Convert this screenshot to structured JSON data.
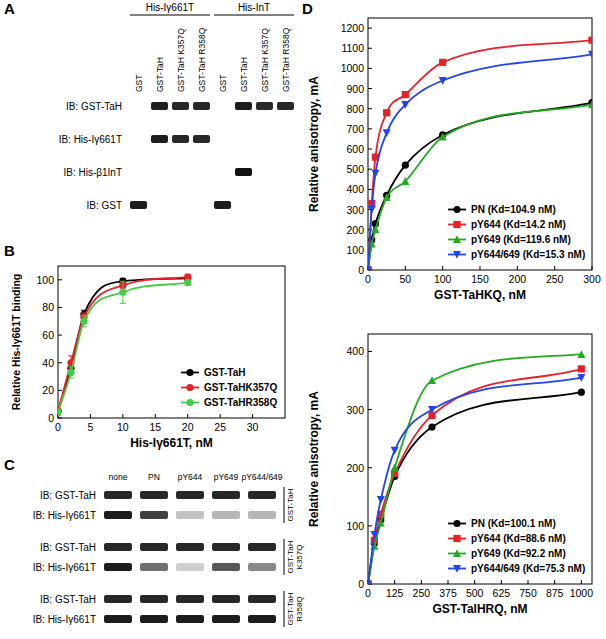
{
  "panel_labels": [
    "A",
    "B",
    "C",
    "D"
  ],
  "blots": [
    {
      "column_groups": [
        {
          "label": "His-Iγ661T",
          "lanes": [
            "GST",
            "GST-TaH",
            "GST-TaH K357Q",
            "GST-TaH R358Q"
          ]
        },
        {
          "label": "His-InT",
          "lanes": [
            "GST",
            "GST-TaH",
            "GST-TaH K357Q",
            "GST-TaH R358Q"
          ]
        }
      ],
      "rows": [
        {
          "label": "IB: GST-TaH",
          "bands": [
            0,
            0.95,
            0.9,
            0.9,
            0,
            0.95,
            0.9,
            0.9
          ]
        },
        {
          "label": "IB: His-Iγ661T",
          "bands": [
            0,
            0.95,
            0.9,
            0.9,
            0,
            0,
            0,
            0
          ]
        },
        {
          "label": "IB: His-β1InT",
          "bands": [
            0,
            0,
            0,
            0,
            0,
            1,
            0,
            0
          ]
        },
        {
          "label": "IB: GST",
          "bands": [
            0.95,
            0,
            0,
            0,
            0.95,
            0,
            0,
            0
          ]
        }
      ]
    },
    {
      "lanes": [
        "none",
        "PN",
        "pY644",
        "pY649",
        "pY644/649"
      ],
      "blocks": [
        {
          "label": "GST-TaH",
          "rows": [
            {
              "label": "IB: GST-TaH",
              "bands": [
                0.9,
                0.9,
                0.9,
                0.9,
                0.9
              ]
            },
            {
              "label": "IB: His-Iγ661T",
              "bands": [
                0.95,
                0.8,
                0.25,
                0.3,
                0.3
              ]
            }
          ]
        },
        {
          "label": "GST-TaH K357Q",
          "rows": [
            {
              "label": "IB: GST-TaH",
              "bands": [
                0.9,
                0.9,
                0.9,
                0.9,
                0.9
              ]
            },
            {
              "label": "IB: His-Iγ661T",
              "bands": [
                0.95,
                0.6,
                0.2,
                0.7,
                0.5
              ]
            }
          ]
        },
        {
          "label": "GST-TaH R358Q",
          "rows": [
            {
              "label": "IB: GST-TaH",
              "bands": [
                0.9,
                0.9,
                0.9,
                0.9,
                0.9
              ]
            },
            {
              "label": "IB: His-Iγ661T",
              "bands": [
                0.95,
                0.95,
                0.95,
                0.95,
                0.95
              ]
            }
          ]
        }
      ]
    }
  ],
  "chart_data": [
    {
      "type": "line",
      "xlabel": "His-Iγ661T, nM",
      "ylabel": "Relative His-Iγ661T binding",
      "x": [
        0,
        2,
        4,
        10,
        20
      ],
      "xlim": [
        0,
        35
      ],
      "xticks": [
        0,
        5,
        10,
        15,
        20,
        25,
        30
      ],
      "ylim": [
        0,
        110
      ],
      "yticks": [
        0,
        20,
        40,
        60,
        80,
        100
      ],
      "grid": false,
      "legend": "lower right",
      "marker": "circle",
      "line_style": "smooth",
      "series": [
        {
          "name": "GST-TaH",
          "color": "#000000",
          "values": [
            5,
            36,
            75,
            99,
            101
          ],
          "errors": [
            2,
            4,
            3,
            2,
            1
          ]
        },
        {
          "name": "GST-TaHK357Q",
          "color": "#e8202a",
          "values": [
            5,
            40,
            73,
            96,
            102
          ],
          "errors": [
            2,
            5,
            3,
            2,
            2
          ]
        },
        {
          "name": "GST-TaHR358Q",
          "color": "#44cc44",
          "values": [
            4,
            33,
            70,
            91,
            98
          ],
          "errors": [
            2,
            4,
            4,
            8,
            2
          ]
        }
      ]
    },
    {
      "type": "line",
      "xlabel": "GST-TaHKQ, nM",
      "ylabel": "Relative anisotropy, mA",
      "x": [
        0,
        5,
        10,
        25,
        50,
        100,
        300
      ],
      "xlim": [
        0,
        300
      ],
      "xticks": [
        0,
        50,
        100,
        150,
        200,
        250,
        300
      ],
      "ylim": [
        0,
        1250
      ],
      "yticks": [
        0,
        100,
        200,
        300,
        400,
        500,
        600,
        700,
        800,
        900,
        1000,
        1100,
        1200
      ],
      "grid": false,
      "legend": "lower right",
      "line_style": "smooth",
      "series": [
        {
          "name": "PN (Kd=104.9 nM)",
          "color": "#000000",
          "marker": "circle",
          "values": [
            0,
            150,
            230,
            370,
            520,
            670,
            830
          ]
        },
        {
          "name": "pY644 (Kd=14.2 nM)",
          "color": "#e8202a",
          "marker": "square",
          "values": [
            0,
            330,
            560,
            780,
            870,
            1030,
            1140
          ]
        },
        {
          "name": "pY649 (Kd=119.6 nM)",
          "color": "#22aa22",
          "marker": "triangle",
          "values": [
            0,
            130,
            200,
            360,
            440,
            660,
            820
          ]
        },
        {
          "name": "pY644/649 (Kd=15.3 nM)",
          "color": "#2244ee",
          "marker": "triangle-down",
          "values": [
            0,
            300,
            480,
            680,
            820,
            940,
            1070
          ]
        }
      ]
    },
    {
      "type": "line",
      "xlabel": "GST-TalHRQ, nM",
      "ylabel": "Relative anisotropy, mA",
      "x": [
        0,
        30,
        60,
        125,
        300,
        1000
      ],
      "xlim": [
        0,
        1050
      ],
      "xticks": [
        0,
        125,
        250,
        375,
        500,
        625,
        750,
        875,
        1000
      ],
      "ylim": [
        0,
        430
      ],
      "yticks": [
        0,
        100,
        200,
        300,
        400
      ],
      "grid": false,
      "legend": "lower right",
      "line_style": "smooth",
      "series": [
        {
          "name": "PN (Kd=100.1 nM)",
          "color": "#000000",
          "marker": "circle",
          "values": [
            0,
            70,
            110,
            185,
            270,
            330
          ]
        },
        {
          "name": "pY644 (Kd=88.6 nM)",
          "color": "#e8202a",
          "marker": "square",
          "values": [
            0,
            75,
            120,
            190,
            290,
            370
          ]
        },
        {
          "name": "pY649 (Kd=92.2 nM)",
          "color": "#22aa22",
          "marker": "triangle",
          "values": [
            0,
            65,
            105,
            200,
            350,
            395
          ]
        },
        {
          "name": "pY644/649 (Kd=75.3 nM)",
          "color": "#2244ee",
          "marker": "triangle-down",
          "values": [
            0,
            85,
            145,
            230,
            300,
            355
          ]
        }
      ]
    }
  ]
}
